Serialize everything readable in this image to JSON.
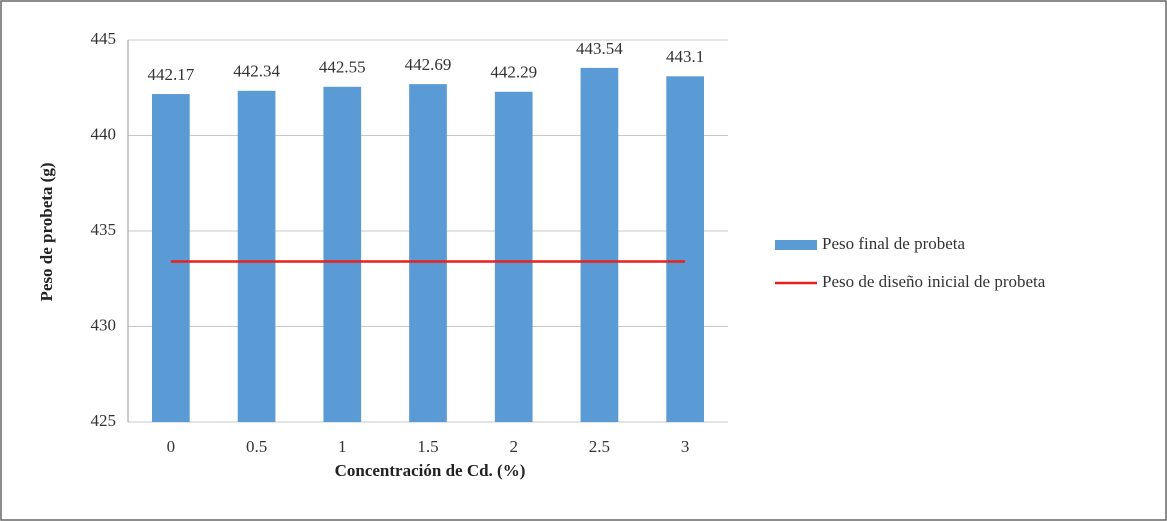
{
  "chart_data": {
    "type": "bar",
    "x_label": "Concentración de Cd. (%)",
    "y_label": "Peso de probeta (g)",
    "categories": [
      "0",
      "0.5",
      "1",
      "1.5",
      "2",
      "2.5",
      "3"
    ],
    "series": [
      {
        "name": "Peso final de probeta",
        "type": "bar",
        "color": "#5b9bd5",
        "values": [
          442.17,
          442.34,
          442.55,
          442.69,
          442.29,
          443.54,
          443.1
        ]
      },
      {
        "name": "Peso de diseño inicial de probeta",
        "type": "line",
        "color": "#e8211c",
        "values": [
          433.4,
          433.4,
          433.4,
          433.4,
          433.4,
          433.4,
          433.4
        ]
      }
    ],
    "ylim": [
      425,
      445
    ],
    "yticks": [
      425,
      430,
      435,
      440,
      445
    ],
    "grid": true,
    "legend": "right"
  }
}
